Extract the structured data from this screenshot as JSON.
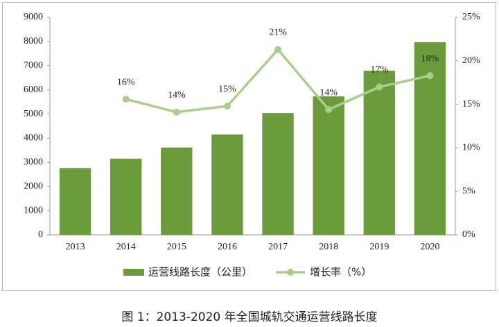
{
  "chart_data": {
    "type": "bar-line",
    "caption": "图 1：2013-2020 年全国城轨交通运营线路长度",
    "categories": [
      "2013",
      "2014",
      "2015",
      "2016",
      "2017",
      "2018",
      "2019",
      "2020"
    ],
    "series": [
      {
        "name": "运营线路长度（公里）",
        "type": "bar",
        "color": "#6b9b3a",
        "values": [
          2760,
          3150,
          3610,
          4150,
          5040,
          5730,
          6790,
          7970
        ]
      },
      {
        "name": "增长率（%）",
        "type": "line",
        "axis": "y2",
        "color": "#a8cf8c",
        "values": [
          null,
          15.6,
          14.1,
          14.8,
          21.3,
          14.4,
          17.0,
          18.3
        ],
        "value_labels": [
          null,
          "16%",
          "14%",
          "15%",
          "21%",
          "14%",
          "17%",
          "18%"
        ]
      }
    ],
    "ylim": [
      0,
      9000
    ],
    "yticks": [
      0,
      1000,
      2000,
      3000,
      4000,
      5000,
      6000,
      7000,
      8000,
      9000
    ],
    "y2lim": [
      0,
      25
    ],
    "y2ticks": [
      {
        "value": 0,
        "label": "0%"
      },
      {
        "value": 5,
        "label": "5%"
      },
      {
        "value": 10,
        "label": "10%"
      },
      {
        "value": 15,
        "label": "15%"
      },
      {
        "value": 20,
        "label": "20%"
      },
      {
        "value": 25,
        "label": "25%"
      }
    ],
    "legend": "bottom"
  }
}
